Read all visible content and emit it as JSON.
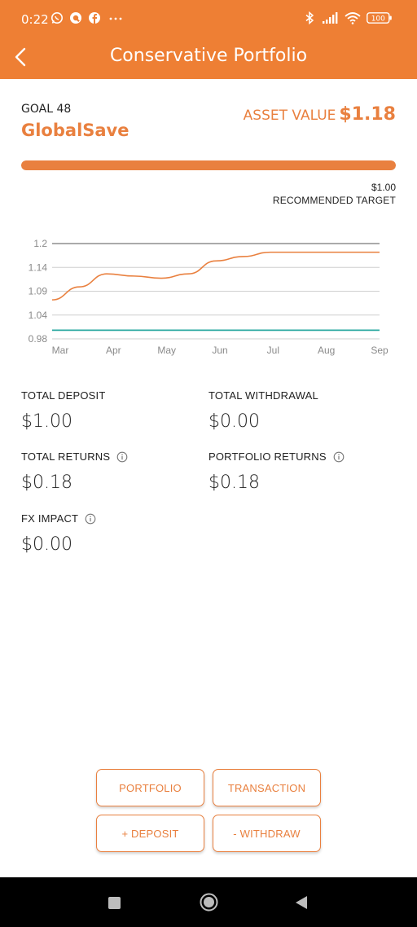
{
  "status_bar": {
    "time": "0:22",
    "battery": "100",
    "icons": [
      "whatsapp-icon",
      "q-app-icon",
      "facebook-icon",
      "more-dots-icon",
      "bluetooth-icon",
      "signal-icon",
      "wifi-icon",
      "battery-icon"
    ]
  },
  "app_bar": {
    "title": "Conservative Portfolio",
    "back_icon": "chevron-left-icon"
  },
  "goal": {
    "label": "GOAL 48",
    "name": "GlobalSave",
    "asset_label": "ASSET VALUE",
    "asset_value": "$1.18",
    "progress": 1.0,
    "target_value": "$1.00",
    "target_label": "RECOMMENDED TARGET"
  },
  "chart_data": {
    "type": "line",
    "x_tick_labels": [
      "Mar",
      "Apr",
      "May",
      "Jun",
      "Jul",
      "Aug",
      "Sep"
    ],
    "y_tick_labels": [
      "1.2",
      "1.14",
      "1.09",
      "1.04",
      "0.98"
    ],
    "ylim": [
      0.98,
      1.2
    ],
    "grid": true,
    "series": [
      {
        "color": "#e9803f",
        "x": [
          "Mar",
          "Mar-mid",
          "Apr",
          "Apr-mid",
          "May",
          "May-mid",
          "Jun",
          "Jun-mid",
          "Jul",
          "Aug",
          "Sep"
        ],
        "values": [
          1.07,
          1.1,
          1.13,
          1.125,
          1.12,
          1.13,
          1.16,
          1.17,
          1.18,
          1.18,
          1.18
        ]
      },
      {
        "color": "#2aa8a0",
        "x": [
          "Mar",
          "Sep"
        ],
        "values": [
          1.0,
          1.0
        ]
      }
    ],
    "colors": {
      "grid": "#cfcfcf",
      "top_grid": "#555555",
      "tick_text": "#8a8a8a"
    }
  },
  "stats": {
    "total_deposit_label": "TOTAL DEPOSIT",
    "total_deposit_value": "$1.00",
    "total_withdrawal_label": "TOTAL WITHDRAWAL",
    "total_withdrawal_value": "$0.00",
    "total_returns_label": "TOTAL RETURNS",
    "total_returns_value": "$0.18",
    "portfolio_returns_label": "PORTFOLIO RETURNS",
    "portfolio_returns_value": "$0.18",
    "fx_impact_label": "FX IMPACT",
    "fx_impact_value": "$0.00"
  },
  "actions": {
    "portfolio": "PORTFOLIO",
    "transaction": "TRANSACTION",
    "deposit": "+ DEPOSIT",
    "withdraw": "- WITHDRAW"
  },
  "colors": {
    "brand": "#ee7f34",
    "accent_text": "#e9803f",
    "nav_bar": "#000000"
  }
}
